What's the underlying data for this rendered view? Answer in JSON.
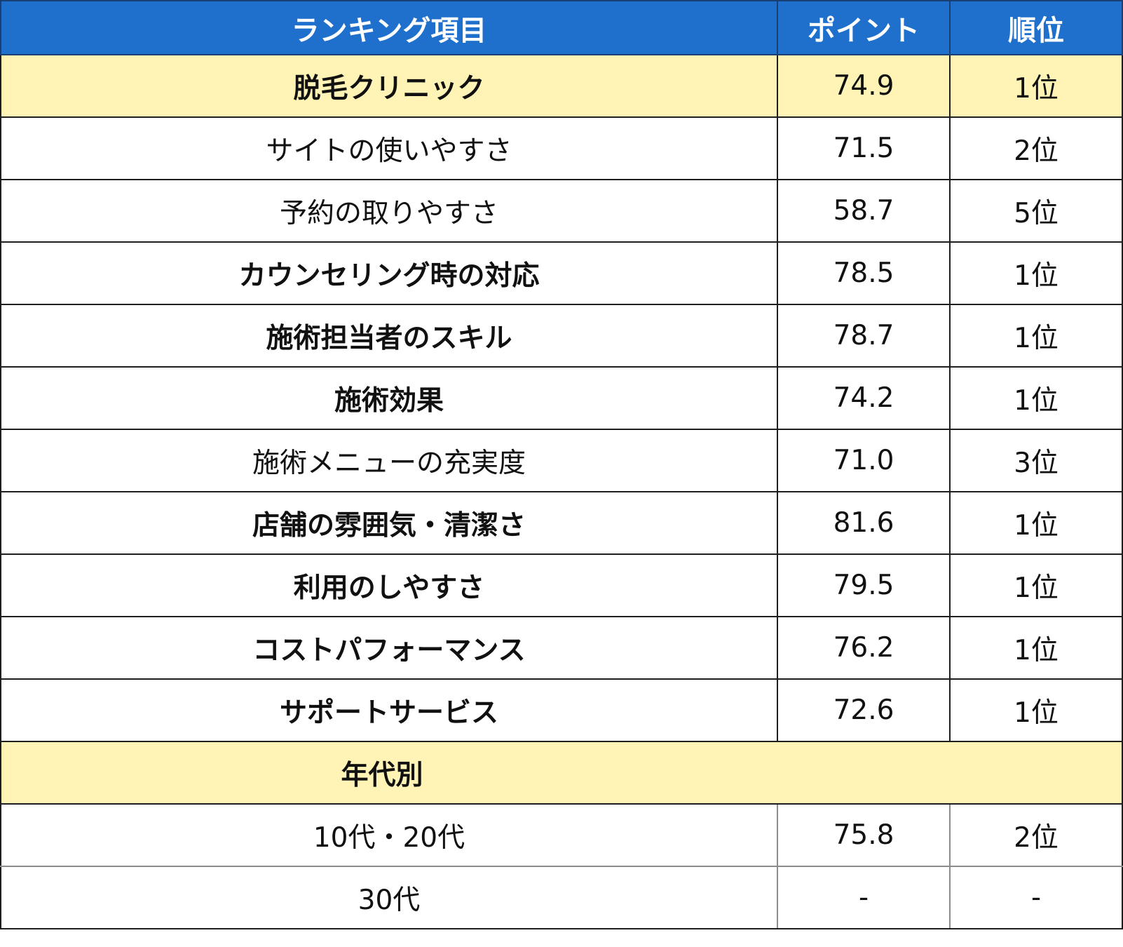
{
  "header": {
    "item": "ランキング項目",
    "point": "ポイント",
    "rank": "順位"
  },
  "rows": [
    {
      "item": "脱毛クリニック",
      "point": "74.9",
      "rank": "1位",
      "bold": true,
      "highlight": true
    },
    {
      "item": "サイトの使いやすさ",
      "point": "71.5",
      "rank": "2位",
      "bold": false
    },
    {
      "item": "予約の取りやすさ",
      "point": "58.7",
      "rank": "5位",
      "bold": false
    },
    {
      "item": "カウンセリング時の対応",
      "point": "78.5",
      "rank": "1位",
      "bold": true
    },
    {
      "item": "施術担当者のスキル",
      "point": "78.7",
      "rank": "1位",
      "bold": true
    },
    {
      "item": "施術効果",
      "point": "74.2",
      "rank": "1位",
      "bold": true
    },
    {
      "item": "施術メニューの充実度",
      "point": "71.0",
      "rank": "3位",
      "bold": false
    },
    {
      "item": "店舗の雰囲気・清潔さ",
      "point": "81.6",
      "rank": "1位",
      "bold": true
    },
    {
      "item": "利用のしやすさ",
      "point": "79.5",
      "rank": "1位",
      "bold": true
    },
    {
      "item": "コストパフォーマンス",
      "point": "76.2",
      "rank": "1位",
      "bold": true
    },
    {
      "item": "サポートサービス",
      "point": "72.6",
      "rank": "1位",
      "bold": true
    }
  ],
  "age_section": {
    "title": "年代別",
    "rows": [
      {
        "item": "10代・20代",
        "point": "75.8",
        "rank": "2位"
      },
      {
        "item": "30代",
        "point": "-",
        "rank": "-"
      }
    ]
  },
  "colors": {
    "header_bg": "#1f6fcc",
    "highlight_bg": "#fff3b5"
  }
}
